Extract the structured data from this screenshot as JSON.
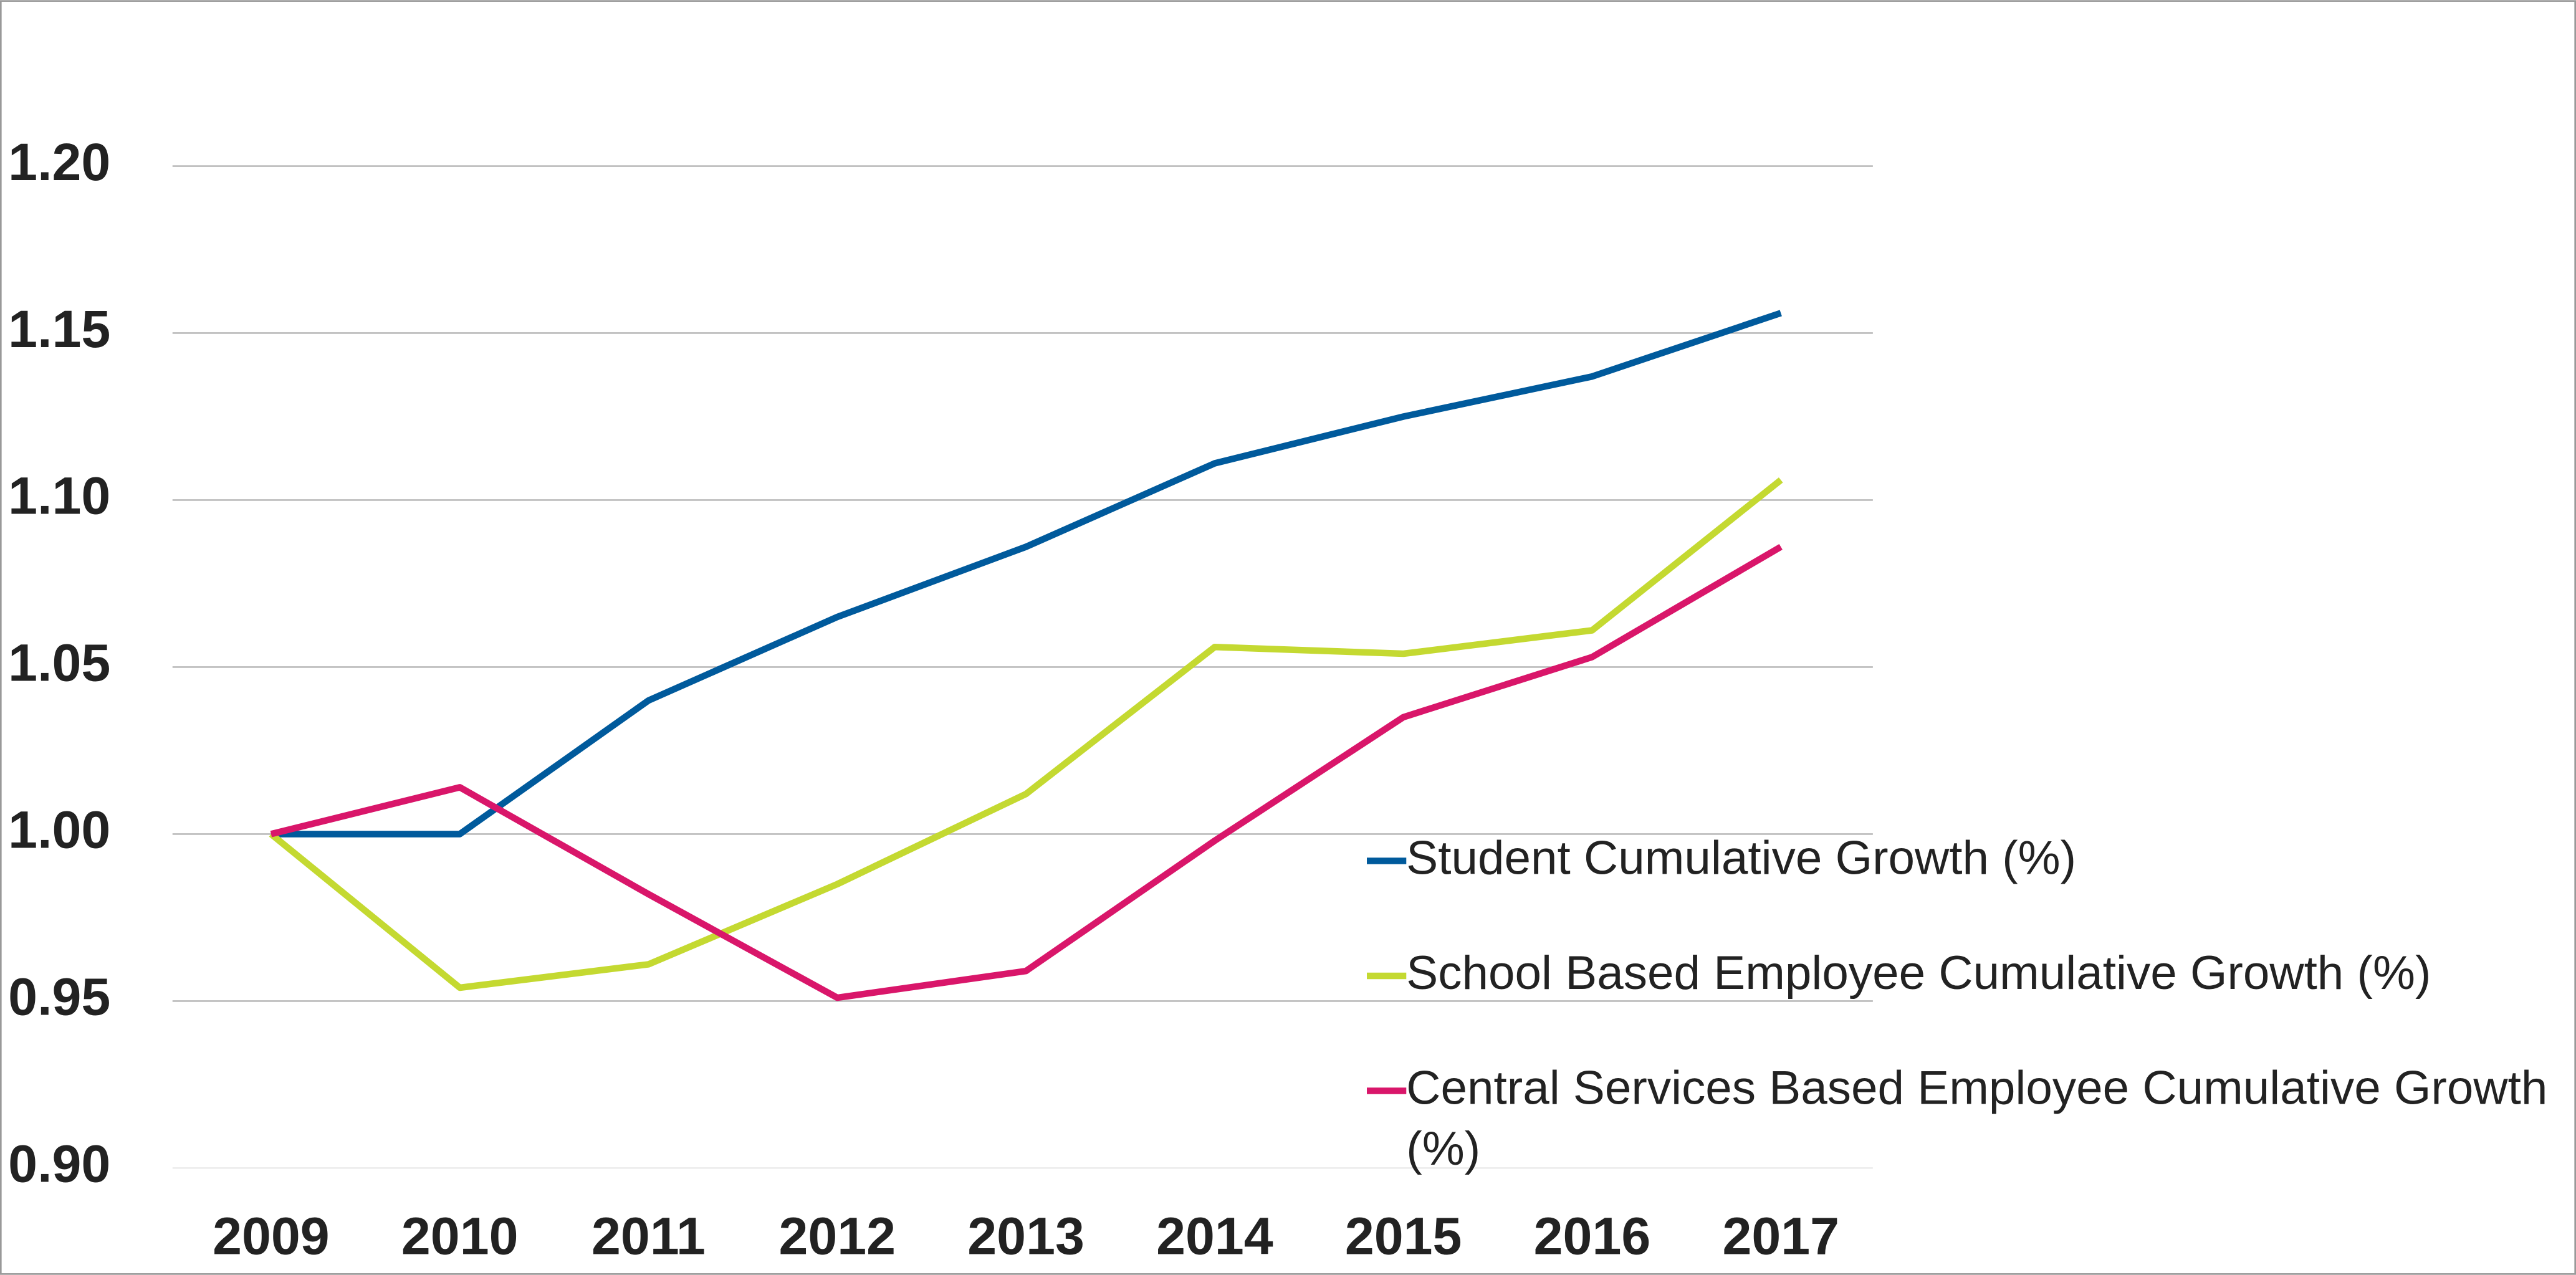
{
  "chart_data": {
    "type": "line",
    "categories": [
      "2009",
      "2010",
      "2011",
      "2012",
      "2013",
      "2014",
      "2015",
      "2016",
      "2017"
    ],
    "series": [
      {
        "name": "Student Cumulative Growth (%)",
        "color": "#005a9c",
        "values": [
          1.0,
          1.0,
          1.04,
          1.065,
          1.086,
          1.111,
          1.125,
          1.137,
          1.156
        ]
      },
      {
        "name": "School Based Employee Cumulative Growth (%)",
        "color": "#c4d931",
        "values": [
          1.0,
          0.954,
          0.961,
          0.985,
          1.012,
          1.056,
          1.054,
          1.061,
          1.106
        ]
      },
      {
        "name": "Central Services Based Employee Cumulative Growth (%)",
        "color": "#d9166a",
        "values": [
          1.0,
          1.014,
          0.982,
          0.951,
          0.959,
          0.998,
          1.035,
          1.053,
          1.086
        ]
      }
    ],
    "ylim": [
      0.9,
      1.2
    ],
    "yticks": [
      {
        "value": 0.9,
        "label": "0.90"
      },
      0.95,
      {
        "value": 1.0,
        "label": "1.00"
      },
      1.05,
      {
        "value": 1.1,
        "label": "1.10"
      },
      1.15,
      {
        "value": 1.2,
        "label": "1.20"
      }
    ],
    "grid": true
  }
}
